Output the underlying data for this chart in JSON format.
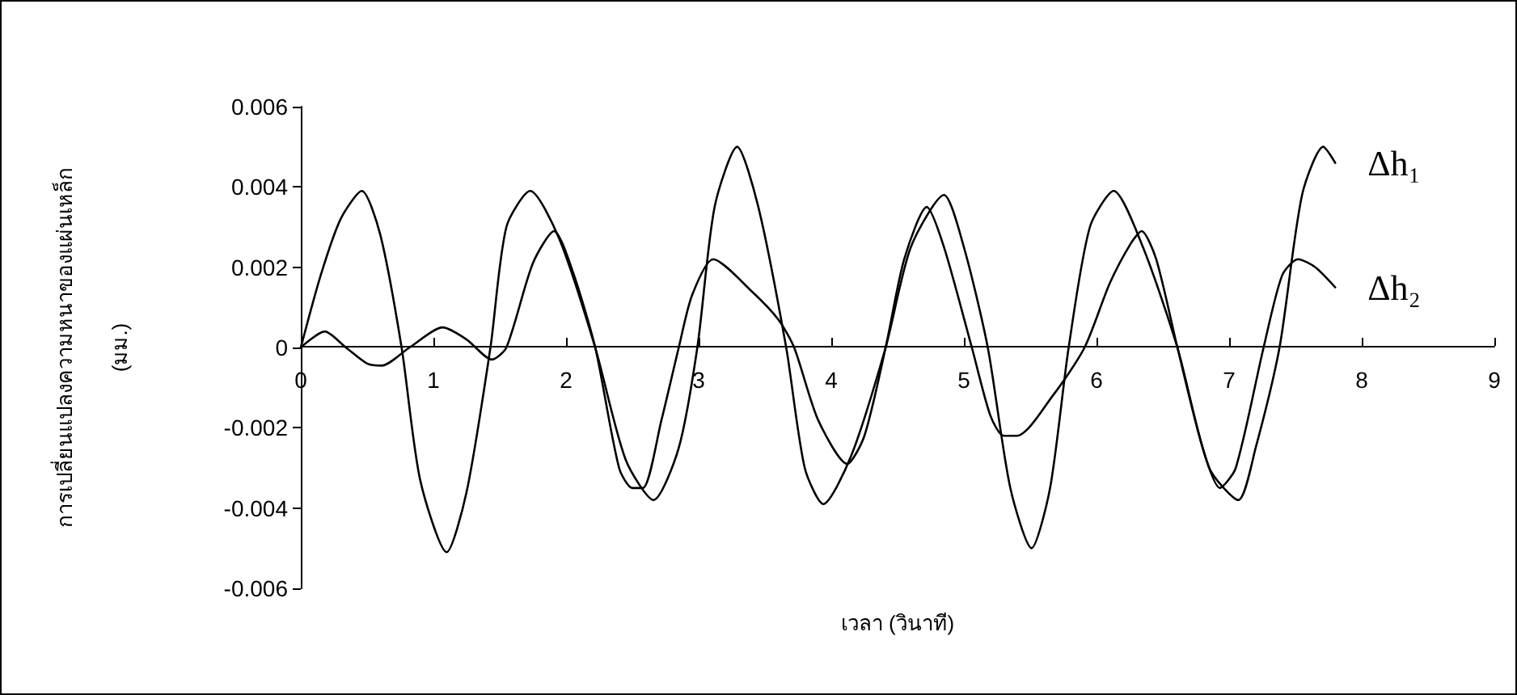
{
  "chart_data": {
    "type": "line",
    "xlabel": "เวลา (วินาที)",
    "ylabel": "การเปลี่ยนแปลงความหนาของแผ่นเหล็ก\n(มม.)",
    "xlim": [
      0,
      9
    ],
    "xticks": [
      0,
      1,
      2,
      3,
      4,
      5,
      6,
      7,
      8,
      9
    ],
    "ylim": [
      -0.006,
      0.006
    ],
    "yticks": [
      -0.006,
      -0.004,
      -0.002,
      0,
      0.002,
      0.004,
      0.006
    ],
    "grid": false,
    "legend": false,
    "marker": "none",
    "line_style": "solid",
    "series": [
      {
        "name": "Δh₁",
        "color": "#000000",
        "x": [
          0,
          0.15,
          0.3,
          0.46,
          0.6,
          0.76,
          0.9,
          1.1,
          1.25,
          1.43,
          1.55,
          1.73,
          1.95,
          2.22,
          2.45,
          2.66,
          2.85,
          2.99,
          3.12,
          3.29,
          3.45,
          3.66,
          3.8,
          3.94,
          4.15,
          4.41,
          4.6,
          4.85,
          5.0,
          5.18,
          5.35,
          5.51,
          5.65,
          5.79,
          5.95,
          6.13,
          6.35,
          6.61,
          6.85,
          7.07,
          7.2,
          7.38,
          7.55,
          7.71,
          7.8
        ],
        "values": [
          0,
          0.0018,
          0.0032,
          0.0039,
          0.0028,
          0,
          -0.0033,
          -0.0051,
          -0.0036,
          0,
          0.003,
          0.0039,
          0.0027,
          0,
          -0.0028,
          -0.0038,
          -0.0025,
          0,
          0.0035,
          0.005,
          0.0035,
          0,
          -0.003,
          -0.0039,
          -0.0027,
          0,
          0.0025,
          0.0038,
          0.0025,
          0,
          -0.0035,
          -0.005,
          -0.0035,
          0,
          0.003,
          0.0039,
          0.0025,
          0,
          -0.003,
          -0.0038,
          -0.0025,
          0,
          0.0038,
          0.005,
          0.0046
        ]
      },
      {
        "name": "Δh₂",
        "color": "#000000",
        "x": [
          0,
          0.18,
          0.34,
          0.5,
          0.61,
          0.82,
          1.07,
          1.25,
          1.44,
          1.55,
          1.75,
          1.91,
          2.05,
          2.22,
          2.4,
          2.5,
          2.58,
          2.72,
          2.85,
          2.95,
          3.11,
          3.4,
          3.6,
          3.72,
          3.9,
          4.12,
          4.25,
          4.41,
          4.55,
          4.72,
          4.85,
          5.06,
          5.2,
          5.3,
          5.4,
          5.67,
          5.91,
          6.1,
          6.26,
          6.34,
          6.45,
          6.61,
          6.8,
          6.93,
          7.05,
          7.26,
          7.4,
          7.52,
          7.65,
          7.8
        ],
        "values": [
          0,
          0.0004,
          0,
          -0.0004,
          -0.00045,
          0,
          0.0005,
          0.0002,
          -0.0003,
          0,
          0.0021,
          0.0029,
          0.0019,
          0,
          -0.003,
          -0.0035,
          -0.0035,
          -0.0018,
          0,
          0.0013,
          0.0022,
          0.0014,
          0.0007,
          0,
          -0.0018,
          -0.0029,
          -0.0022,
          0,
          0.0022,
          0.0035,
          0.0025,
          0,
          -0.0017,
          -0.0022,
          -0.0022,
          -0.0012,
          0,
          0.0016,
          0.0026,
          0.0029,
          0.0022,
          0,
          -0.0025,
          -0.0035,
          -0.003,
          0,
          0.0018,
          0.0022,
          0.002,
          0.0015
        ]
      }
    ]
  }
}
